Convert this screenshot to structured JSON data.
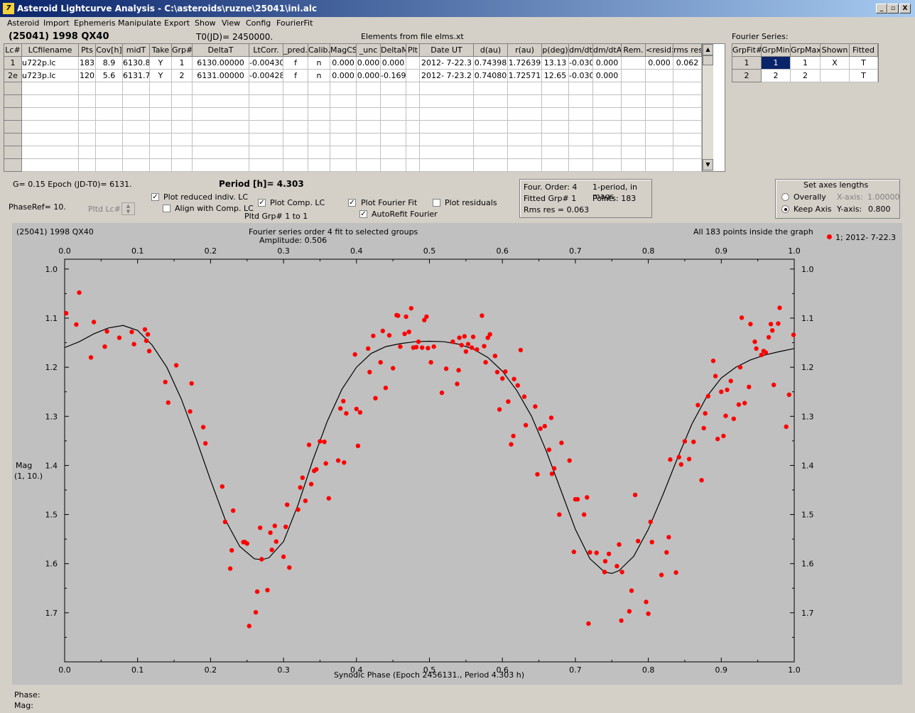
{
  "window": {
    "title": "Asteroid Lightcurve Analysis - C:\\asteroids\\ruzne\\25041\\ini.alc",
    "app_icon": "7",
    "controls": [
      "_",
      "▫",
      "X"
    ]
  },
  "menu": [
    "Asteroid",
    "Import",
    "Ephemeris",
    "Manipulate",
    "Export",
    "Show",
    "View",
    "Config",
    "FourierFit"
  ],
  "header": {
    "asteroid": "(25041) 1998 QX40",
    "t0": "T0(JD)= 2450000.",
    "elements": "Elements from file elms.xt"
  },
  "lc_table": {
    "columns": [
      "Lc#",
      "LCfilename",
      "Pts",
      "Cov[h]",
      "midT",
      "Take",
      "Grp#",
      "DeltaT",
      "LtCorr.",
      "_pred.",
      "Calib.",
      "MagCS",
      "_unc",
      "DeltaM",
      "Plt",
      "Date UT",
      "d(au)",
      "r(au)",
      "p(deg)",
      "dm/dt",
      "dm/dtA",
      "Rem.",
      "<resid>",
      "rms res"
    ],
    "rows": [
      [
        "1",
        "u722p.lc",
        "183",
        "8.9",
        "6130.8",
        "Y",
        "1",
        "6130.00000",
        "-0.00430",
        "f",
        "n",
        "0.000",
        "0.000",
        "0.000",
        "",
        "2012- 7-22.3",
        "0.74398",
        "1.72639",
        "13.13",
        "-0.030",
        "0.000",
        "",
        "0.000",
        "0.062"
      ],
      [
        "2e",
        "u723p.lc",
        "120",
        "5.6",
        "6131.7",
        "Y",
        "2",
        "6131.00000",
        "-0.00428",
        "f",
        "n",
        "0.000",
        "0.000",
        "-0.169",
        "",
        "2012- 7-23.2",
        "0.74080",
        "1.72571",
        "12.65",
        "-0.030",
        "0.000",
        "",
        "",
        ""
      ]
    ]
  },
  "fourier_series": {
    "title": "Fourier Series:",
    "columns": [
      "GrpFit#",
      "GrpMin",
      "GrpMax",
      "Shown",
      "Fitted"
    ],
    "rows": [
      [
        "1",
        "1",
        "1",
        "X",
        "T"
      ],
      [
        "2",
        "2",
        "2",
        "",
        "T"
      ]
    ]
  },
  "info": {
    "g_epoch": "G= 0.15   Epoch (JD-T0)= 6131.",
    "period": "Period [h]= 4.303",
    "phaseref": "PhaseRef= 10.",
    "pltd_lc": "Pltd Lc#:",
    "pltd_grp": "Pltd Grp#  1   to   1"
  },
  "checkboxes": {
    "plot_reduced": {
      "label": "Plot reduced indiv. LC",
      "checked": true
    },
    "align_comp": {
      "label": "Align with Comp. LC",
      "checked": false
    },
    "plot_comp": {
      "label": "Plot Comp. LC",
      "checked": true
    },
    "plot_fourier": {
      "label": "Plot Fourier Fit",
      "checked": true
    },
    "autorefit": {
      "label": "AutoRefit Fourier",
      "checked": true
    },
    "plot_residuals": {
      "label": "Plot residuals",
      "checked": false
    }
  },
  "fit_info": {
    "order": "Four. Order:  4",
    "period_mode": "1-period, in mags",
    "fitted_grp": "Fitted Grp# 1",
    "points": "Points: 183",
    "rms": "Rms res     = 0.063"
  },
  "axes_box": {
    "title": "Set axes lengths",
    "overally": "Overally",
    "keep_axis": "Keep Axis",
    "x_axis_label": "X-axis:",
    "x_axis_value": "1.00000",
    "y_axis_label": "Y-axis:",
    "y_axis_value": "0.800",
    "selected": "keep_axis"
  },
  "plot_text": {
    "object": "(25041) 1998 QX40",
    "fourier_title": "Fourier series order 4 fit to selected groups",
    "amplitude": "Amplitude: 0.506",
    "inside": "All 183 points inside the graph",
    "legend": "1; 2012- 7-22.3",
    "ylabel_1": "Mag",
    "ylabel_2": "(1, 10.)"
  },
  "status": {
    "phase": "Phase:",
    "mag": "Mag:"
  },
  "colors": {
    "point": "#ff0000",
    "title_start": "#0a246a",
    "title_end": "#a6caf0",
    "selected_cell": "#0a246a"
  },
  "chart_data": {
    "type": "scatter",
    "xlabel": "Synodic Phase (Epoch 2456131., Period 4.303 h)",
    "ylabel": "Mag (1, 10.)",
    "xlim": [
      0,
      1
    ],
    "ylim": [
      1.8,
      0.98
    ],
    "y_inverted": true,
    "x_ticks": [
      "0.0",
      "0.1",
      "0.2",
      "0.3",
      "0.4",
      "0.5",
      "0.6",
      "0.7",
      "0.8",
      "0.9",
      "1.0"
    ],
    "y_ticks": [
      "1.0",
      "1.1",
      "1.2",
      "1.3",
      "1.4",
      "1.5",
      "1.6",
      "1.7"
    ],
    "series": [
      {
        "name": "1; 2012- 7-22.3",
        "type": "scatter",
        "color": "#ff0000",
        "points": [
          [
            0.002,
            1.09
          ],
          [
            0.016,
            1.113
          ],
          [
            0.02,
            1.048
          ],
          [
            0.036,
            1.18
          ],
          [
            0.04,
            1.108
          ],
          [
            0.055,
            1.158
          ],
          [
            0.058,
            1.127
          ],
          [
            0.075,
            1.14
          ],
          [
            0.092,
            1.128
          ],
          [
            0.095,
            1.153
          ],
          [
            0.11,
            1.123
          ],
          [
            0.112,
            1.146
          ],
          [
            0.114,
            1.133
          ],
          [
            0.116,
            1.167
          ],
          [
            0.138,
            1.23
          ],
          [
            0.142,
            1.272
          ],
          [
            0.153,
            1.196
          ],
          [
            0.172,
            1.29
          ],
          [
            0.174,
            1.233
          ],
          [
            0.19,
            1.322
          ],
          [
            0.193,
            1.355
          ],
          [
            0.216,
            1.443
          ],
          [
            0.22,
            1.515
          ],
          [
            0.227,
            1.61
          ],
          [
            0.229,
            1.573
          ],
          [
            0.231,
            1.492
          ],
          [
            0.245,
            1.556
          ],
          [
            0.247,
            1.556
          ],
          [
            0.25,
            1.559
          ],
          [
            0.253,
            1.727
          ],
          [
            0.262,
            1.699
          ],
          [
            0.264,
            1.657
          ],
          [
            0.268,
            1.527
          ],
          [
            0.27,
            1.591
          ],
          [
            0.278,
            1.654
          ],
          [
            0.282,
            1.537
          ],
          [
            0.284,
            1.572
          ],
          [
            0.288,
            1.523
          ],
          [
            0.29,
            1.555
          ],
          [
            0.3,
            1.586
          ],
          [
            0.303,
            1.525
          ],
          [
            0.305,
            1.48
          ],
          [
            0.308,
            1.608
          ],
          [
            0.32,
            1.49
          ],
          [
            0.323,
            1.445
          ],
          [
            0.326,
            1.425
          ],
          [
            0.33,
            1.472
          ],
          [
            0.335,
            1.358
          ],
          [
            0.338,
            1.438
          ],
          [
            0.342,
            1.411
          ],
          [
            0.345,
            1.408
          ],
          [
            0.35,
            1.351
          ],
          [
            0.356,
            1.352
          ],
          [
            0.358,
            1.396
          ],
          [
            0.362,
            1.467
          ],
          [
            0.375,
            1.39
          ],
          [
            0.378,
            1.284
          ],
          [
            0.382,
            1.269
          ],
          [
            0.383,
            1.394
          ],
          [
            0.386,
            1.294
          ],
          [
            0.398,
            1.174
          ],
          [
            0.4,
            1.285
          ],
          [
            0.402,
            1.36
          ],
          [
            0.405,
            1.292
          ],
          [
            0.416,
            1.162
          ],
          [
            0.418,
            1.21
          ],
          [
            0.423,
            1.136
          ],
          [
            0.426,
            1.263
          ],
          [
            0.433,
            1.19
          ],
          [
            0.436,
            1.126
          ],
          [
            0.44,
            1.242
          ],
          [
            0.445,
            1.135
          ],
          [
            0.45,
            1.202
          ],
          [
            0.455,
            1.094
          ],
          [
            0.457,
            1.095
          ],
          [
            0.46,
            1.158
          ],
          [
            0.466,
            1.132
          ],
          [
            0.468,
            1.097
          ],
          [
            0.472,
            1.128
          ],
          [
            0.475,
            1.08
          ],
          [
            0.478,
            1.16
          ],
          [
            0.482,
            1.159
          ],
          [
            0.485,
            1.148
          ],
          [
            0.49,
            1.16
          ],
          [
            0.493,
            1.104
          ],
          [
            0.496,
            1.097
          ],
          [
            0.498,
            1.161
          ],
          [
            0.502,
            1.19
          ],
          [
            0.506,
            1.158
          ],
          [
            0.517,
            1.252
          ],
          [
            0.523,
            1.203
          ],
          [
            0.532,
            1.148
          ],
          [
            0.538,
            1.234
          ],
          [
            0.54,
            1.206
          ],
          [
            0.541,
            1.14
          ],
          [
            0.544,
            1.155
          ],
          [
            0.548,
            1.137
          ],
          [
            0.55,
            1.168
          ],
          [
            0.553,
            1.153
          ],
          [
            0.558,
            1.16
          ],
          [
            0.56,
            1.138
          ],
          [
            0.565,
            1.164
          ],
          [
            0.572,
            1.095
          ],
          [
            0.575,
            1.157
          ],
          [
            0.577,
            1.19
          ],
          [
            0.58,
            1.14
          ],
          [
            0.583,
            1.133
          ],
          [
            0.59,
            1.177
          ],
          [
            0.593,
            1.21
          ],
          [
            0.596,
            1.286
          ],
          [
            0.6,
            1.223
          ],
          [
            0.604,
            1.209
          ],
          [
            0.608,
            1.27
          ],
          [
            0.612,
            1.357
          ],
          [
            0.615,
            1.34
          ],
          [
            0.616,
            1.224
          ],
          [
            0.621,
            1.237
          ],
          [
            0.625,
            1.165
          ],
          [
            0.63,
            1.26
          ],
          [
            0.632,
            1.318
          ],
          [
            0.645,
            1.28
          ],
          [
            0.648,
            1.418
          ],
          [
            0.652,
            1.325
          ],
          [
            0.658,
            1.32
          ],
          [
            0.664,
            1.368
          ],
          [
            0.667,
            1.303
          ],
          [
            0.668,
            1.417
          ],
          [
            0.671,
            1.406
          ],
          [
            0.678,
            1.5
          ],
          [
            0.681,
            1.354
          ],
          [
            0.692,
            1.39
          ],
          [
            0.698,
            1.576
          ],
          [
            0.7,
            1.469
          ],
          [
            0.703,
            1.469
          ],
          [
            0.712,
            1.5
          ],
          [
            0.716,
            1.465
          ],
          [
            0.718,
            1.722
          ],
          [
            0.72,
            1.577
          ],
          [
            0.729,
            1.578
          ],
          [
            0.74,
            1.617
          ],
          [
            0.741,
            1.595
          ],
          [
            0.746,
            1.58
          ],
          [
            0.757,
            1.605
          ],
          [
            0.76,
            1.561
          ],
          [
            0.763,
            1.716
          ],
          [
            0.764,
            1.617
          ],
          [
            0.774,
            1.697
          ],
          [
            0.777,
            1.655
          ],
          [
            0.782,
            1.46
          ],
          [
            0.786,
            1.554
          ],
          [
            0.797,
            1.678
          ],
          [
            0.8,
            1.702
          ],
          [
            0.803,
            1.515
          ],
          [
            0.805,
            1.556
          ],
          [
            0.818,
            1.623
          ],
          [
            0.825,
            1.577
          ],
          [
            0.828,
            1.546
          ],
          [
            0.83,
            1.388
          ],
          [
            0.838,
            1.618
          ],
          [
            0.842,
            1.383
          ],
          [
            0.845,
            1.398
          ],
          [
            0.85,
            1.351
          ],
          [
            0.856,
            1.387
          ],
          [
            0.862,
            1.352
          ],
          [
            0.868,
            1.277
          ],
          [
            0.873,
            1.43
          ],
          [
            0.876,
            1.324
          ],
          [
            0.878,
            1.294
          ],
          [
            0.882,
            1.259
          ],
          [
            0.889,
            1.187
          ],
          [
            0.892,
            1.218
          ],
          [
            0.895,
            1.346
          ],
          [
            0.9,
            1.25
          ],
          [
            0.903,
            1.34
          ],
          [
            0.906,
            1.299
          ],
          [
            0.908,
            1.246
          ],
          [
            0.913,
            1.228
          ],
          [
            0.917,
            1.305
          ],
          [
            0.924,
            1.276
          ],
          [
            0.926,
            1.2
          ],
          [
            0.928,
            1.099
          ],
          [
            0.932,
            1.273
          ],
          [
            0.938,
            1.24
          ],
          [
            0.94,
            1.112
          ],
          [
            0.946,
            1.148
          ],
          [
            0.948,
            1.162
          ],
          [
            0.955,
            1.175
          ],
          [
            0.958,
            1.167
          ],
          [
            0.961,
            1.17
          ],
          [
            0.965,
            1.139
          ],
          [
            0.968,
            1.112
          ],
          [
            0.97,
            1.125
          ],
          [
            0.972,
            1.236
          ],
          [
            0.978,
            1.111
          ],
          [
            0.98,
            1.079
          ],
          [
            0.989,
            1.321
          ],
          [
            0.993,
            1.256
          ],
          [
            0.999,
            1.134
          ]
        ]
      },
      {
        "name": "Fourier fit",
        "type": "line",
        "color": "#000000",
        "x": [
          0,
          0.02,
          0.04,
          0.06,
          0.08,
          0.1,
          0.12,
          0.14,
          0.16,
          0.18,
          0.2,
          0.22,
          0.24,
          0.26,
          0.27,
          0.28,
          0.3,
          0.32,
          0.34,
          0.36,
          0.38,
          0.4,
          0.42,
          0.44,
          0.46,
          0.48,
          0.5,
          0.52,
          0.54,
          0.56,
          0.58,
          0.6,
          0.62,
          0.64,
          0.66,
          0.68,
          0.7,
          0.72,
          0.74,
          0.75,
          0.76,
          0.78,
          0.8,
          0.82,
          0.84,
          0.86,
          0.88,
          0.9,
          0.92,
          0.94,
          0.96,
          0.98,
          1.0
        ],
        "y": [
          1.16,
          1.148,
          1.132,
          1.12,
          1.115,
          1.125,
          1.155,
          1.2,
          1.265,
          1.345,
          1.43,
          1.51,
          1.565,
          1.59,
          1.592,
          1.588,
          1.555,
          1.48,
          1.39,
          1.31,
          1.245,
          1.2,
          1.172,
          1.158,
          1.152,
          1.148,
          1.147,
          1.148,
          1.153,
          1.163,
          1.18,
          1.208,
          1.248,
          1.3,
          1.37,
          1.45,
          1.53,
          1.59,
          1.617,
          1.62,
          1.614,
          1.585,
          1.53,
          1.46,
          1.385,
          1.315,
          1.26,
          1.222,
          1.2,
          1.185,
          1.175,
          1.168,
          1.162
        ]
      }
    ]
  }
}
